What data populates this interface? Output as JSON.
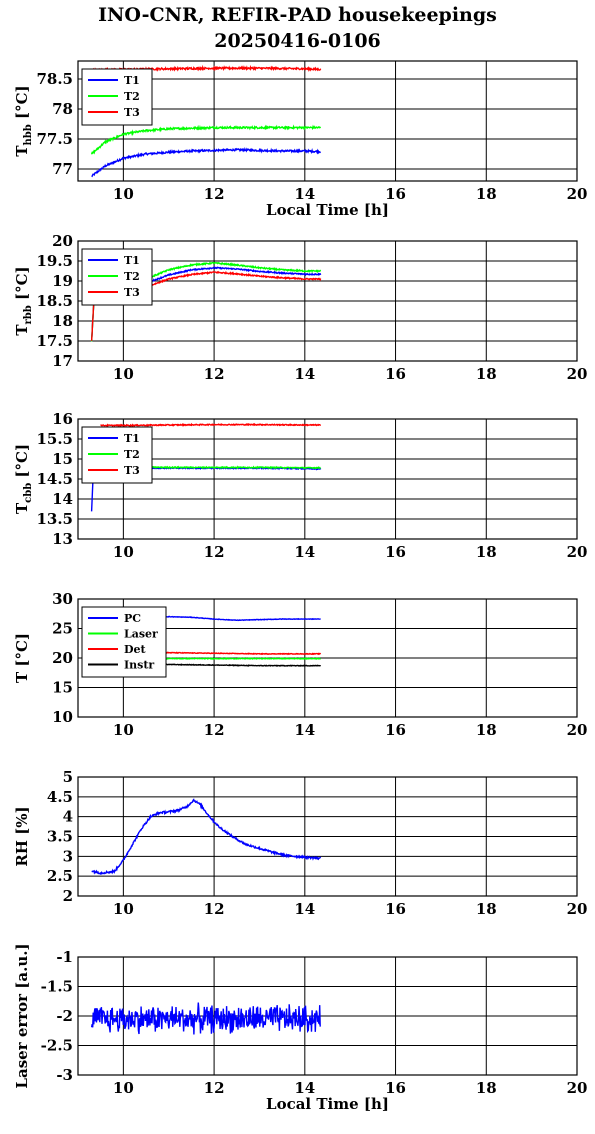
{
  "figure": {
    "title_line1": "INO-CNR, REFIR-PAD housekeepings",
    "title_line2": "20250416-0106"
  },
  "colors": {
    "blue": "#0000ff",
    "green": "#00ff00",
    "red": "#ff0000",
    "black": "#000000"
  },
  "chart_data": [
    {
      "type": "line",
      "ylabel": "T_hbb [°C]",
      "xlabel": "Local Time [h]",
      "xlim": [
        9,
        20
      ],
      "xticks": [
        10,
        12,
        14,
        16,
        18,
        20
      ],
      "ylim": [
        76.8,
        78.8
      ],
      "yticks": [
        77,
        77.5,
        78,
        78.5
      ],
      "legend": "top-left",
      "series": [
        {
          "name": "T1",
          "color": "#0000ff",
          "x": [
            9.3,
            9.6,
            10,
            10.5,
            11,
            11.5,
            12,
            12.5,
            13,
            13.5,
            14,
            14.35
          ],
          "y": [
            76.88,
            77.05,
            77.18,
            77.25,
            77.28,
            77.3,
            77.31,
            77.32,
            77.31,
            77.3,
            77.3,
            77.29
          ],
          "noise": 0.015
        },
        {
          "name": "T2",
          "color": "#00ff00",
          "x": [
            9.3,
            9.6,
            10,
            10.5,
            11,
            11.5,
            12,
            12.5,
            13,
            13.5,
            14,
            14.35
          ],
          "y": [
            77.25,
            77.45,
            77.58,
            77.64,
            77.67,
            77.68,
            77.69,
            77.69,
            77.69,
            77.69,
            77.69,
            77.69
          ],
          "noise": 0.015
        },
        {
          "name": "T3",
          "color": "#ff0000",
          "x": [
            9.3,
            10,
            11,
            12,
            13,
            14,
            14.35
          ],
          "y": [
            78.65,
            78.66,
            78.67,
            78.68,
            78.68,
            78.67,
            78.66
          ],
          "noise": 0.015
        }
      ]
    },
    {
      "type": "line",
      "ylabel": "T_rbb [°C]",
      "xlabel": "",
      "xlim": [
        9,
        20
      ],
      "xticks": [
        10,
        12,
        14,
        16,
        18,
        20
      ],
      "ylim": [
        17,
        20
      ],
      "yticks": [
        17,
        17.5,
        18,
        18.5,
        19,
        19.5,
        20
      ],
      "legend": "top-left",
      "series": [
        {
          "name": "T1",
          "color": "#0000ff",
          "x": [
            9.3,
            9.35,
            9.5,
            10,
            10.5,
            11,
            11.5,
            12,
            12.5,
            13,
            13.5,
            14,
            14.35
          ],
          "y": [
            17.5,
            18.5,
            18.5,
            18.7,
            18.95,
            19.15,
            19.28,
            19.33,
            19.3,
            19.24,
            19.2,
            19.17,
            19.17
          ],
          "noise": 0.015
        },
        {
          "name": "T2",
          "color": "#00ff00",
          "x": [
            9.3,
            9.35,
            9.5,
            10,
            10.5,
            11,
            11.5,
            12,
            12.5,
            13,
            13.5,
            14,
            14.35
          ],
          "y": [
            17.5,
            18.5,
            18.5,
            18.75,
            19.05,
            19.28,
            19.4,
            19.45,
            19.4,
            19.33,
            19.28,
            19.25,
            19.25
          ],
          "noise": 0.015
        },
        {
          "name": "T3",
          "color": "#ff0000",
          "x": [
            9.3,
            9.35,
            9.5,
            10,
            10.5,
            11,
            11.5,
            12,
            12.5,
            13,
            13.5,
            14,
            14.35
          ],
          "y": [
            17.5,
            18.5,
            18.5,
            18.62,
            18.85,
            19.05,
            19.16,
            19.22,
            19.18,
            19.12,
            19.08,
            19.05,
            19.05
          ],
          "noise": 0.015
        }
      ]
    },
    {
      "type": "line",
      "ylabel": "T_cbb [°C]",
      "xlabel": "",
      "xlim": [
        9,
        20
      ],
      "xticks": [
        10,
        12,
        14,
        16,
        18,
        20
      ],
      "ylim": [
        13,
        16
      ],
      "yticks": [
        13,
        13.5,
        14,
        14.5,
        15,
        15.5,
        16
      ],
      "legend": "top-left",
      "series": [
        {
          "name": "T1",
          "color": "#0000ff",
          "x": [
            9.3,
            9.33,
            9.4,
            9.5,
            10,
            11,
            12,
            13,
            14,
            14.35
          ],
          "y": [
            13.7,
            14.5,
            14.75,
            14.77,
            14.78,
            14.77,
            14.77,
            14.77,
            14.76,
            14.75
          ],
          "noise": 0.012
        },
        {
          "name": "T2",
          "color": "#00ff00",
          "x": [
            9.5,
            10,
            11,
            12,
            13,
            14,
            14.35
          ],
          "y": [
            14.8,
            14.8,
            14.79,
            14.79,
            14.79,
            14.78,
            14.78
          ],
          "noise": 0.012
        },
        {
          "name": "T3",
          "color": "#ff0000",
          "x": [
            9.5,
            10,
            11,
            12,
            13,
            14,
            14.35
          ],
          "y": [
            15.84,
            15.84,
            15.85,
            15.86,
            15.86,
            15.85,
            15.85
          ],
          "noise": 0.012
        }
      ]
    },
    {
      "type": "line",
      "ylabel": "T [°C]",
      "xlabel": "",
      "xlim": [
        9,
        20
      ],
      "xticks": [
        10,
        12,
        14,
        16,
        18,
        20
      ],
      "ylim": [
        10,
        30
      ],
      "yticks": [
        10,
        15,
        20,
        25,
        30
      ],
      "legend": "top-left",
      "series": [
        {
          "name": "PC",
          "color": "#0000ff",
          "x": [
            9.3,
            10,
            11,
            11.5,
            12,
            12.5,
            13,
            13.5,
            14,
            14.35
          ],
          "y": [
            27.0,
            27.0,
            27.0,
            26.9,
            26.6,
            26.4,
            26.5,
            26.6,
            26.6,
            26.6
          ],
          "noise": 0.04
        },
        {
          "name": "Laser",
          "color": "#00ff00",
          "x": [
            9.3,
            10,
            11,
            12,
            13,
            14,
            14.35
          ],
          "y": [
            19.9,
            19.9,
            19.9,
            19.9,
            19.9,
            19.9,
            19.9
          ],
          "noise": 0.05
        },
        {
          "name": "Det",
          "color": "#ff0000",
          "x": [
            9.3,
            10,
            11,
            12,
            13,
            14,
            14.35
          ],
          "y": [
            20.9,
            20.9,
            20.9,
            20.8,
            20.7,
            20.7,
            20.7
          ],
          "noise": 0.05
        },
        {
          "name": "Instr",
          "color": "#000000",
          "x": [
            9.3,
            10,
            11,
            12,
            13,
            14,
            14.35
          ],
          "y": [
            18.9,
            18.9,
            18.9,
            18.8,
            18.7,
            18.7,
            18.7
          ],
          "noise": 0.05
        }
      ]
    },
    {
      "type": "line",
      "ylabel": "RH [%]",
      "xlabel": "",
      "xlim": [
        9,
        20
      ],
      "xticks": [
        10,
        12,
        14,
        16,
        18,
        20
      ],
      "ylim": [
        2,
        5
      ],
      "yticks": [
        2,
        2.5,
        3,
        3.5,
        4,
        4.5,
        5
      ],
      "legend": "none",
      "series": [
        {
          "name": "",
          "color": "#0000ff",
          "x": [
            9.3,
            9.5,
            9.8,
            10.0,
            10.2,
            10.4,
            10.6,
            10.8,
            11.0,
            11.2,
            11.4,
            11.55,
            11.7,
            11.9,
            12.1,
            12.4,
            12.7,
            13.0,
            13.3,
            13.6,
            14.0,
            14.35
          ],
          "y": [
            2.63,
            2.58,
            2.62,
            2.9,
            3.3,
            3.7,
            4.0,
            4.1,
            4.12,
            4.16,
            4.25,
            4.42,
            4.3,
            4.0,
            3.75,
            3.5,
            3.3,
            3.2,
            3.1,
            3.02,
            2.98,
            2.95
          ],
          "noise": 0.025
        }
      ]
    },
    {
      "type": "line",
      "ylabel": "Laser error [a.u.]",
      "xlabel": "Local Time [h]",
      "xlim": [
        9,
        20
      ],
      "xticks": [
        10,
        12,
        14,
        16,
        18,
        20
      ],
      "ylim": [
        -3,
        -1
      ],
      "yticks": [
        -3,
        -2.5,
        -2,
        -1.5,
        -1
      ],
      "legend": "none",
      "series": [
        {
          "name": "",
          "color": "#0000ff",
          "x": [
            9.3,
            14.35
          ],
          "y": [
            -2.05,
            -2.05
          ],
          "noise": 0.28,
          "oscillating": true
        }
      ]
    }
  ]
}
